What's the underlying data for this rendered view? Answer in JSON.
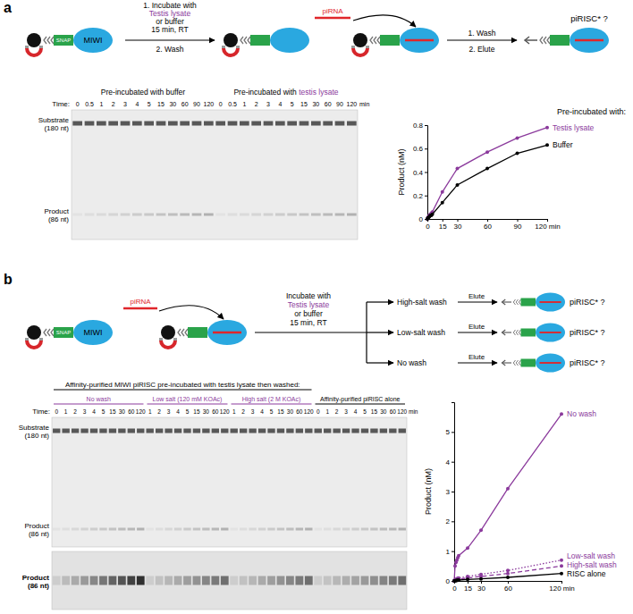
{
  "chart_data": [
    {
      "type": "line",
      "title": "Pre-incubated with:",
      "y_label": "Product (nM)",
      "x": [
        0,
        0.5,
        1,
        2,
        3,
        4,
        5,
        15,
        30,
        60,
        90,
        120
      ],
      "series": [
        {
          "name": "Testis lysate",
          "color": "#8b3a9c",
          "line_style": "solid",
          "marker": "circle",
          "values": [
            0,
            0.01,
            0.02,
            0.03,
            0.04,
            0.05,
            0.06,
            0.23,
            0.43,
            0.57,
            0.69,
            0.78
          ]
        },
        {
          "name": "Buffer",
          "color": "#000000",
          "line_style": "solid",
          "marker": "circle",
          "values": [
            0,
            0.01,
            0.01,
            0.02,
            0.03,
            0.03,
            0.04,
            0.14,
            0.29,
            0.43,
            0.56,
            0.63
          ]
        }
      ],
      "xlim": [
        0,
        120
      ],
      "xticks": [
        0,
        15,
        30,
        60,
        90,
        {
          "value": 120,
          "label": "120 min"
        }
      ],
      "ylim": [
        0,
        0.8
      ],
      "yticks": [
        0,
        0.2,
        0.4,
        0.6,
        0.8
      ]
    },
    {
      "type": "line",
      "y_label": "Product (nM)",
      "x": [
        0,
        1,
        2,
        3,
        4,
        5,
        15,
        30,
        60,
        120
      ],
      "series": [
        {
          "name": "No wash",
          "color": "#8b3a9c",
          "line_style": "solid",
          "marker": "circle",
          "values": [
            0,
            0.5,
            0.62,
            0.7,
            0.78,
            0.85,
            1.1,
            1.7,
            3.1,
            5.6
          ]
        },
        {
          "name": "Low-salt wash",
          "color": "#8b3a9c",
          "line_style": "dotted",
          "marker": "circle",
          "values": [
            0,
            0.03,
            0.05,
            0.07,
            0.09,
            0.1,
            0.15,
            0.22,
            0.35,
            0.7
          ]
        },
        {
          "name": "High-salt wash",
          "color": "#8b3a9c",
          "line_style": "dashed",
          "marker": "circle",
          "values": [
            0,
            0.02,
            0.03,
            0.04,
            0.05,
            0.06,
            0.1,
            0.15,
            0.25,
            0.5
          ]
        },
        {
          "name": "RISC alone",
          "color": "#000000",
          "line_style": "solid",
          "marker": "circle",
          "values": [
            0,
            0.01,
            0.01,
            0.02,
            0.02,
            0.03,
            0.05,
            0.07,
            0.12,
            0.25
          ]
        }
      ],
      "xlim": [
        0,
        120
      ],
      "xticks": [
        0,
        15,
        30,
        60,
        {
          "value": 120,
          "label": "120 min"
        }
      ],
      "ylim": [
        0,
        6
      ],
      "yticks": [
        0,
        1,
        2,
        3,
        4,
        5
      ]
    }
  ],
  "panels": [
    {
      "label": "a",
      "schematic": {
        "snap": "SNAP",
        "miwi": "MIWI",
        "pirna": "piRNA",
        "step1": [
          {
            "text": "1. Incubate with"
          },
          {
            "text": "Testis lysate",
            "highlight": true
          },
          {
            "text": "or buffer"
          },
          {
            "text": "15 min, RT"
          }
        ],
        "step1_below": "2. Wash",
        "step2_above": "1. Wash",
        "step2_below": "2. Elute",
        "product": "piRISC* ?"
      },
      "gel": {
        "time_label": "Time:",
        "time_unit": "min",
        "substrate": [
          "Substrate",
          "(180 nt)"
        ],
        "product": [
          "Product",
          "(86 nt)"
        ],
        "groups": [
          {
            "label": [
              {
                "text": "Pre-incubated with buffer"
              }
            ],
            "times": [
              0,
              0.5,
              1,
              2,
              3,
              4,
              5,
              15,
              30,
              60,
              90,
              120
            ]
          },
          {
            "label": [
              {
                "text": "Pre-incubated with "
              },
              {
                "text": "testis lysate",
                "highlight": true
              }
            ],
            "times": [
              0,
              0.5,
              1,
              2,
              3,
              4,
              5,
              15,
              30,
              60,
              90,
              120
            ]
          }
        ]
      }
    },
    {
      "label": "b",
      "schematic": {
        "snap": "SNAP",
        "miwi": "MIWI",
        "pirna": "piRNA",
        "step1": [
          {
            "text": "Incubate with"
          },
          {
            "text": "Testis lysate",
            "highlight": true
          },
          {
            "text": "or buffer"
          },
          {
            "text": "15 min, RT"
          }
        ],
        "branches": [
          {
            "wash": "High-salt wash",
            "elute": "Elute",
            "product": "piRISC* ?"
          },
          {
            "wash": "Low-salt wash",
            "elute": "Elute",
            "product": "piRISC* ?"
          },
          {
            "wash": "No wash",
            "elute": "Elute",
            "product": "piRISC* ?"
          }
        ]
      },
      "gel": {
        "header": "Affinity-purified MIWI piRISC pre-incubated with testis lysate then washed:",
        "time_label": "Time:",
        "time_unit": "min",
        "substrate": [
          "Substrate",
          "(180 nt)"
        ],
        "product": [
          "Product",
          "(86 nt)"
        ],
        "product_strip": [
          "Product",
          "(86 nt)"
        ],
        "groups": [
          {
            "label": [
              {
                "text": "No wash",
                "highlight": true
              }
            ],
            "times": [
              0,
              1,
              2,
              3,
              4,
              5,
              15,
              30,
              60,
              120
            ]
          },
          {
            "label": [
              {
                "text": "Low salt (120 mM KOAc)",
                "highlight": true
              }
            ],
            "times": [
              1,
              2,
              3,
              4,
              5,
              15,
              30,
              60,
              120
            ]
          },
          {
            "label": [
              {
                "text": "High salt (2 M KOAc)",
                "highlight": true
              }
            ],
            "times": [
              1,
              2,
              3,
              4,
              5,
              15,
              30,
              60,
              120
            ]
          },
          {
            "label": [
              {
                "text": "Affinity-purified piRISC alone"
              }
            ],
            "times": [
              0,
              1,
              2,
              3,
              4,
              5,
              15,
              30,
              60,
              120
            ]
          }
        ]
      }
    }
  ]
}
